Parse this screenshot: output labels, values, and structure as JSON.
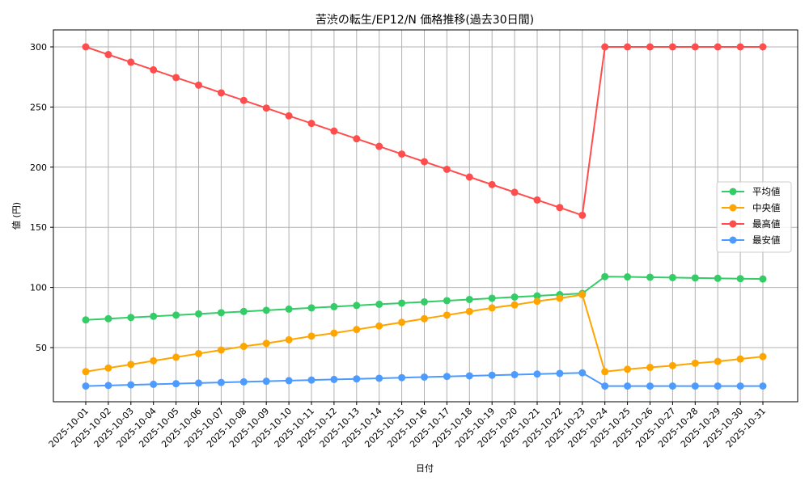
{
  "chart_data": {
    "type": "line",
    "title": "苦渋の転生/EP12/N 価格推移(過去30日間)",
    "xlabel": "日付",
    "ylabel": "値 (円)",
    "ylim": [
      5,
      314
    ],
    "yticks": [
      50,
      100,
      150,
      200,
      250,
      300
    ],
    "grid": true,
    "legend_position": "center right",
    "categories": [
      "2025-10-01",
      "2025-10-02",
      "2025-10-03",
      "2025-10-04",
      "2025-10-05",
      "2025-10-06",
      "2025-10-07",
      "2025-10-08",
      "2025-10-09",
      "2025-10-10",
      "2025-10-11",
      "2025-10-12",
      "2025-10-13",
      "2025-10-14",
      "2025-10-15",
      "2025-10-16",
      "2025-10-17",
      "2025-10-18",
      "2025-10-19",
      "2025-10-20",
      "2025-10-21",
      "2025-10-22",
      "2025-10-23",
      "2025-10-24",
      "2025-10-25",
      "2025-10-26",
      "2025-10-27",
      "2025-10-28",
      "2025-10-29",
      "2025-10-30",
      "2025-10-31"
    ],
    "series": [
      {
        "name": "平均値",
        "color": "#33cc66",
        "values": [
          73,
          74,
          75,
          76,
          77,
          78,
          79,
          80,
          81,
          82,
          83,
          84,
          85,
          86,
          87,
          88,
          89,
          90,
          91,
          92,
          93,
          94,
          95,
          109,
          108.8,
          108.5,
          108.2,
          107.9,
          107.6,
          107.3,
          107
        ]
      },
      {
        "name": "中央値",
        "color": "#ffa500",
        "values": [
          30,
          33,
          36,
          39,
          42,
          45,
          48,
          51,
          53.5,
          56.5,
          59.5,
          62,
          65,
          68,
          71,
          74,
          77,
          80,
          83,
          85.5,
          88.5,
          91,
          94,
          30,
          32,
          33.5,
          35,
          37,
          38.5,
          40.5,
          42.5
        ]
      },
      {
        "name": "最高値",
        "color": "#ff4d4d",
        "values": [
          300,
          293.6,
          287.3,
          280.9,
          274.5,
          268.2,
          261.8,
          255.5,
          249.1,
          242.7,
          236.4,
          230,
          223.6,
          217.3,
          210.9,
          204.5,
          198.2,
          191.8,
          185.5,
          179.1,
          172.7,
          166.4,
          160,
          300,
          300,
          300,
          300,
          300,
          300,
          300,
          300
        ]
      },
      {
        "name": "最安値",
        "color": "#4d9bff",
        "values": [
          18,
          18.5,
          19,
          19.5,
          20,
          20.5,
          21,
          21.5,
          22,
          22.5,
          23,
          23.5,
          24,
          24.5,
          25,
          25.5,
          26,
          26.5,
          27,
          27.5,
          28,
          28.5,
          29,
          18,
          18,
          18,
          18,
          18,
          18,
          18,
          18
        ]
      }
    ]
  }
}
